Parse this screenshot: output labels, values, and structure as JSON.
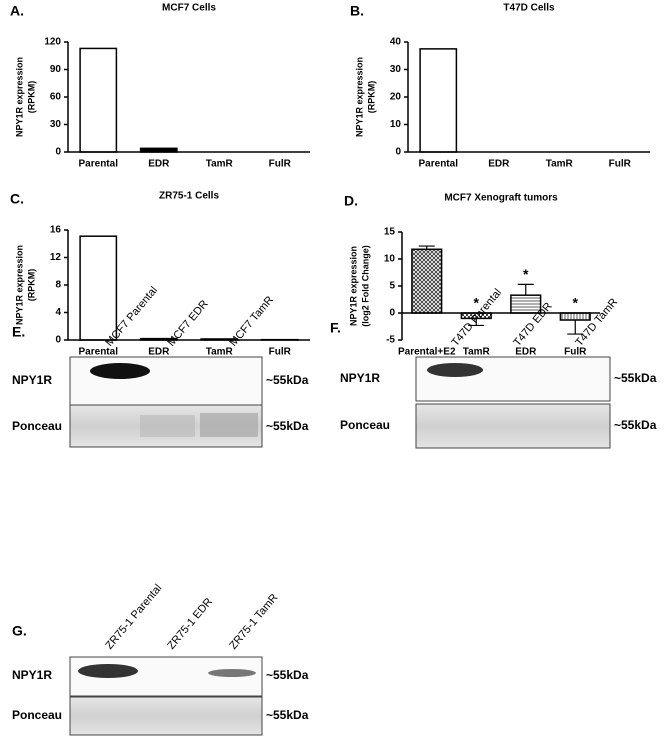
{
  "chart_data": [
    {
      "type": "bar",
      "panel": "A.",
      "title": "MCF7 Cells",
      "y_label": [
        "NPY1R expression",
        "(RPKM)"
      ],
      "categories": [
        "Parental",
        "EDR",
        "TamR",
        "FulR"
      ],
      "values": [
        113,
        4,
        0,
        0
      ],
      "colors": [
        "#ffffff",
        "#000000",
        "#ffffff",
        "#ffffff"
      ],
      "ylim": [
        0,
        120
      ],
      "yticks": [
        0,
        30,
        60,
        90,
        120
      ]
    },
    {
      "type": "bar",
      "panel": "B.",
      "title": "T47D Cells",
      "y_label": [
        "NPY1R expression",
        "(RPKM)"
      ],
      "categories": [
        "Parental",
        "EDR",
        "TamR",
        "FulR"
      ],
      "values": [
        37.5,
        0,
        0,
        0
      ],
      "colors": [
        "#ffffff",
        "#ffffff",
        "#ffffff",
        "#ffffff"
      ],
      "ylim": [
        0,
        40
      ],
      "yticks": [
        0,
        10,
        20,
        30,
        40
      ]
    },
    {
      "type": "bar",
      "panel": "C.",
      "title": "ZR75-1 Cells",
      "y_label": [
        "NPY1R expression",
        "(RPKM)"
      ],
      "categories": [
        "Parental",
        "EDR",
        "TamR",
        "FulR"
      ],
      "values": [
        15.1,
        0.2,
        0.15,
        0.05
      ],
      "colors": [
        "#ffffff",
        "#000000",
        "#000000",
        "#000000"
      ],
      "ylim": [
        0,
        16
      ],
      "yticks": [
        0,
        4,
        8,
        12,
        16
      ]
    },
    {
      "type": "bar",
      "panel": "D.",
      "title": "MCF7 Xenograft tumors",
      "y_label": [
        "NPY1R expression",
        "(log2 Fold Change)"
      ],
      "categories": [
        "Parental+E2",
        "TamR",
        "EDR",
        "FulR"
      ],
      "values": [
        11.8,
        -1,
        3.3,
        -1.3
      ],
      "errors": [
        0.6,
        1.3,
        2,
        2.6
      ],
      "significance": [
        null,
        "*",
        "*",
        "*"
      ],
      "colors": [
        "url(#p-cross)",
        "url(#p-check)",
        "url(#p-h)",
        "url(#p-v)"
      ],
      "ylim": [
        -5,
        15
      ],
      "yticks": [
        -5,
        0,
        5,
        10,
        15
      ]
    }
  ],
  "blots": [
    {
      "panel": "E.",
      "lanes": [
        "MCF7 Parental",
        "MCF7 EDR",
        "MCF7 TamR"
      ],
      "rows": [
        "NPY1R",
        "Ponceau"
      ],
      "size_labels": [
        "~55kDa",
        "~55kDa"
      ]
    },
    {
      "panel": "F.",
      "lanes": [
        "T47D Parental",
        "T47D EDR",
        "T47D TamR"
      ],
      "rows": [
        "NPY1R",
        "Ponceau"
      ],
      "size_labels": [
        "~55kDa",
        "~55kDa"
      ]
    },
    {
      "panel": "G.",
      "lanes": [
        "ZR75-1 Parental",
        "ZR75-1 EDR",
        "ZR75-1 TamR"
      ],
      "rows": [
        "NPY1R",
        "Ponceau"
      ],
      "size_labels": [
        "~55kDa",
        "~55kDa"
      ]
    }
  ]
}
